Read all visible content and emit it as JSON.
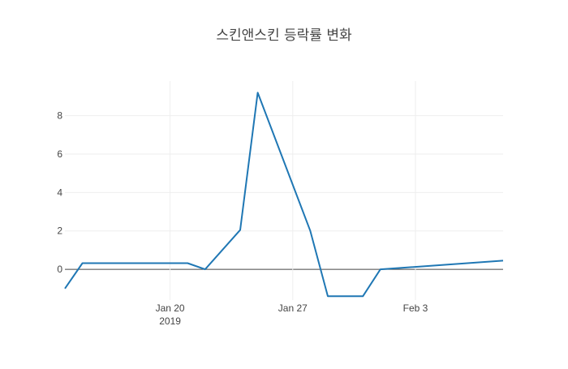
{
  "chart_data": {
    "type": "line",
    "title": "스킨앤스킨 등락률 변화",
    "xlabel": "",
    "ylabel": "",
    "x_range": [
      "2019-01-14",
      "2019-02-08"
    ],
    "ylim": [
      -1.6,
      9.8
    ],
    "grid": true,
    "legend": "none",
    "x_ticks": [
      {
        "date": "2019-01-20",
        "label": "Jan 20",
        "sublabel": "2019"
      },
      {
        "date": "2019-01-27",
        "label": "Jan 27",
        "sublabel": ""
      },
      {
        "date": "2019-02-03",
        "label": "Feb 3",
        "sublabel": ""
      }
    ],
    "y_ticks": [
      0,
      2,
      4,
      6,
      8
    ],
    "series": [
      {
        "color": "#1f77b4",
        "points": [
          {
            "x": "2019-01-14",
            "y": -1.0
          },
          {
            "x": "2019-01-15",
            "y": 0.32
          },
          {
            "x": "2019-01-21",
            "y": 0.32
          },
          {
            "x": "2019-01-22",
            "y": 0.0
          },
          {
            "x": "2019-01-24",
            "y": 2.05
          },
          {
            "x": "2019-01-25",
            "y": 9.2
          },
          {
            "x": "2019-01-28",
            "y": 2.0
          },
          {
            "x": "2019-01-29",
            "y": -1.4
          },
          {
            "x": "2019-01-31",
            "y": -1.4
          },
          {
            "x": "2019-02-01",
            "y": 0.0
          },
          {
            "x": "2019-02-08",
            "y": 0.45
          }
        ]
      }
    ]
  }
}
